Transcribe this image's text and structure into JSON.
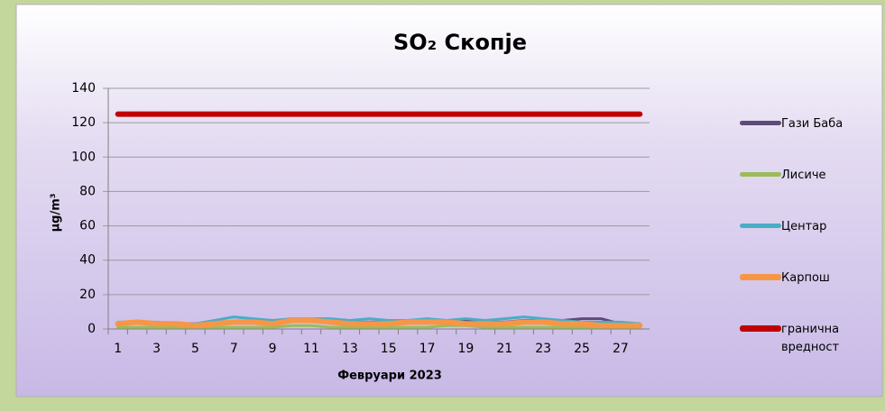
{
  "chart_data": {
    "type": "line",
    "title": "SO₂ Скопје",
    "y_label": "µg/m³",
    "x_label": "Февруари 2023",
    "categories": [
      1,
      null,
      3,
      null,
      5,
      null,
      7,
      null,
      9,
      null,
      11,
      null,
      13,
      null,
      15,
      null,
      17,
      null,
      19,
      null,
      21,
      null,
      23,
      null,
      25,
      null,
      27,
      null
    ],
    "ylim": [
      0,
      140
    ],
    "yticks": [
      0,
      20,
      40,
      60,
      80,
      100,
      120,
      140
    ],
    "grid": true,
    "legend": "right",
    "series": [
      {
        "name": "Гази Баба",
        "color": "#5f497a",
        "values": [
          3,
          4,
          3,
          3,
          3,
          4,
          4,
          4,
          4,
          5,
          5,
          5,
          4,
          4,
          4,
          4,
          5,
          5,
          5,
          4,
          4,
          5,
          5,
          5,
          6,
          6,
          3,
          3
        ]
      },
      {
        "name": "Лисиче",
        "color": "#9bbb59",
        "values": [
          1,
          1,
          1,
          1,
          1,
          1,
          1,
          1,
          1,
          2,
          2,
          1,
          1,
          1,
          1,
          1,
          1,
          2,
          2,
          1,
          1,
          1,
          1,
          1,
          1,
          1,
          1,
          1
        ]
      },
      {
        "name": "Центар",
        "color": "#4bacc6",
        "values": [
          4,
          4,
          4,
          3,
          3,
          5,
          7,
          6,
          5,
          6,
          6,
          6,
          5,
          6,
          5,
          5,
          6,
          5,
          6,
          5,
          6,
          7,
          6,
          5,
          4,
          4,
          4,
          3
        ]
      },
      {
        "name": "Карпош",
        "color": "#f79646",
        "values": [
          3,
          4,
          3,
          3,
          2,
          3,
          4,
          4,
          3,
          5,
          5,
          4,
          3,
          3,
          3,
          4,
          4,
          4,
          3,
          3,
          3,
          4,
          4,
          3,
          3,
          2,
          2,
          2
        ]
      },
      {
        "name": "гранична вредност",
        "color": "#c00000",
        "values": [
          125,
          125,
          125,
          125,
          125,
          125,
          125,
          125,
          125,
          125,
          125,
          125,
          125,
          125,
          125,
          125,
          125,
          125,
          125,
          125,
          125,
          125,
          125,
          125,
          125,
          125,
          125,
          125
        ]
      }
    ]
  }
}
